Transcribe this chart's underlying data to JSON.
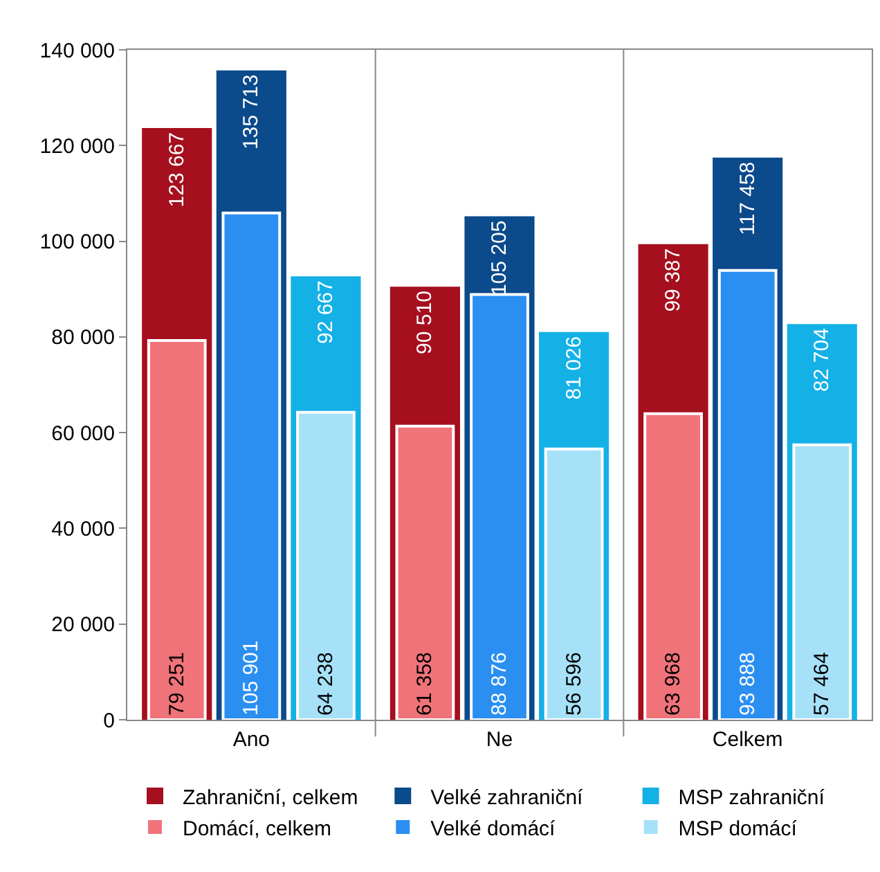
{
  "chart_data": {
    "type": "bar",
    "categories": [
      "Ano",
      "Ne",
      "Celkem"
    ],
    "series": [
      {
        "name": "Zahraniční, celkem",
        "color": "#a50f1e",
        "values": [
          123667,
          90510,
          99387
        ]
      },
      {
        "name": "Velké zahraniční",
        "color": "#0b4a8b",
        "values": [
          135713,
          105205,
          117458
        ]
      },
      {
        "name": "MSP zahraniční",
        "color": "#14b1e7",
        "values": [
          92667,
          81026,
          82704
        ]
      },
      {
        "name": "Domácí, celkem",
        "color": "#f0737a",
        "values": [
          79251,
          61358,
          63968
        ]
      },
      {
        "name": "Velké domácí",
        "color": "#2b8ff2",
        "values": [
          105901,
          88876,
          93888
        ]
      },
      {
        "name": "MSP domácí",
        "color": "#a6e1f8",
        "values": [
          64238,
          56596,
          57464
        ]
      }
    ],
    "ylim": [
      0,
      140000
    ],
    "yticks": [
      {
        "value": 0,
        "label": "0"
      },
      {
        "value": 20000,
        "label": "20 000"
      },
      {
        "value": 40000,
        "label": "40 000"
      },
      {
        "value": 60000,
        "label": "60 000"
      },
      {
        "value": 80000,
        "label": "80 000"
      },
      {
        "value": 100000,
        "label": "100 000"
      },
      {
        "value": 120000,
        "label": "120 000"
      },
      {
        "value": 140000,
        "label": "140 000"
      }
    ],
    "grid": "x",
    "legend": "bottom",
    "data_labels": true
  }
}
